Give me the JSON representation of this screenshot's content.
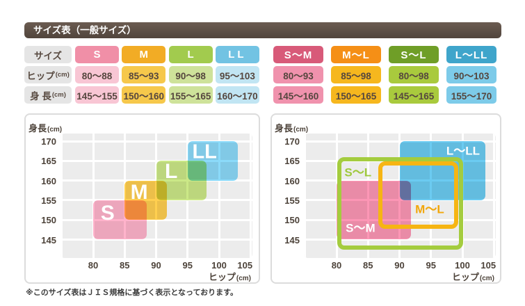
{
  "title": "サイズ表（一般サイズ）",
  "footnote": "※このサイズ表はＪＩＳ規格に基づく表示となっております。",
  "palette": {
    "title_bar_top": "#6B5C51",
    "title_bar_bottom": "#51453C",
    "title_text": "#FFFFFF",
    "label_cell_bg": "#E5E5E5",
    "label_cell_text": "#584A41",
    "data_cell_text": "#55463E",
    "panel_border": "#DCDCDC",
    "panel_bg": "#FFFFFF",
    "plot_bg": "#ECECEC",
    "grid_line": "#FFFFFF",
    "tick_text": "#4C4239",
    "footnote_text": "#3A3A3A"
  },
  "size_tables": {
    "left": {
      "row_labels": [
        {
          "main": "サイズ",
          "unit": ""
        },
        {
          "main": "ヒップ",
          "unit": "(cm)"
        },
        {
          "main": "身 長",
          "unit": "(cm)"
        }
      ],
      "columns": [
        {
          "label": "S",
          "letter_spacing": 0,
          "header_bg": "#F08FA7",
          "data_bg": "#F8C6D4",
          "hip": "80〜88",
          "height": "145〜155"
        },
        {
          "label": "M",
          "letter_spacing": 0,
          "header_bg": "#F2AC25",
          "data_bg": "#F6C84B",
          "hip": "85〜93",
          "height": "150〜160"
        },
        {
          "label": "L",
          "letter_spacing": 0,
          "header_bg": "#A2CB4E",
          "data_bg": "#CEE29A",
          "hip": "90〜98",
          "height": "155〜165"
        },
        {
          "label": "LL",
          "letter_spacing": 4,
          "header_bg": "#72C3E3",
          "data_bg": "#C1E5F3",
          "hip": "95〜103",
          "height": "160〜170"
        }
      ]
    },
    "right": {
      "columns": [
        {
          "label": "S〜M",
          "letter_spacing": 1,
          "header_bg": "#D85A79",
          "data_bg": "#F092AD",
          "hip": "80〜93",
          "height": "145〜160"
        },
        {
          "label": "M〜L",
          "letter_spacing": 1,
          "header_bg": "#F58F16",
          "data_bg": "#F6B71E",
          "hip": "85〜98",
          "height": "150〜165"
        },
        {
          "label": "S〜L",
          "letter_spacing": 1,
          "header_bg": "#6F9E27",
          "data_bg": "#A9CA3D",
          "hip": "80〜98",
          "height": "145〜165"
        },
        {
          "label": "L〜LL",
          "letter_spacing": 1,
          "header_bg": "#3FA5CB",
          "data_bg": "#7DCBE9",
          "hip": "90〜103",
          "height": "155〜170"
        }
      ]
    }
  },
  "chart_data": [
    {
      "type": "area",
      "title": "一般サイズ（S/M/L/LL）適合範囲",
      "ylabel_main": "身長",
      "ylabel_unit": "(cm)",
      "xlabel_main": "ヒップ",
      "xlabel_unit": "(cm)",
      "x_ticks": [
        80,
        85,
        90,
        95,
        100,
        105
      ],
      "y_ticks": [
        145,
        150,
        155,
        160,
        165,
        170
      ],
      "x_gridlines": [
        75,
        80,
        85,
        90,
        95,
        100,
        105
      ],
      "y_gridlines": [
        145,
        150,
        155,
        160,
        165,
        170
      ],
      "x_range_cm": [
        80,
        105
      ],
      "y_range_cm": [
        145,
        170
      ],
      "grid": true,
      "regions": [
        {
          "name": "S",
          "style": "fill",
          "color": "#FFB3CB",
          "hip_cm": [
            80,
            88
          ],
          "height_cm": [
            145,
            155
          ],
          "draw_hip": [
            80,
            88.5
          ],
          "label": {
            "text": "S",
            "color": "#FFFFFF",
            "size": 30,
            "hip": 82.3,
            "height": 151.7
          }
        },
        {
          "name": "M",
          "style": "fill",
          "color": "#FFCF50",
          "hip_cm": [
            85,
            93
          ],
          "height_cm": [
            150,
            160
          ],
          "draw_hip": [
            85,
            91.7
          ],
          "label": {
            "text": "M",
            "color": "#FFFFFF",
            "size": 30,
            "hip": 87.3,
            "height": 156.9
          }
        },
        {
          "name": "L",
          "style": "fill",
          "color": "#CBE887",
          "hip_cm": [
            90,
            98
          ],
          "height_cm": [
            155,
            165
          ],
          "label": {
            "text": "L",
            "color": "#FFFFFF",
            "size": 30,
            "hip": 92.4,
            "height": 162.2
          }
        },
        {
          "name": "LL",
          "style": "fill",
          "color": "#8BDAF9",
          "hip_cm": [
            95,
            103
          ],
          "height_cm": [
            160,
            170
          ],
          "label": {
            "text": "LL",
            "color": "#FFFFFF",
            "size": 29,
            "hip": 97.7,
            "height": 167.1
          }
        }
      ]
    },
    {
      "type": "area",
      "title": "ゆったり・ワイドサイズ（S〜M/M〜L/S〜L/L〜LL）適合範囲",
      "ylabel_main": "身長",
      "ylabel_unit": "(cm)",
      "xlabel_main": "ヒップ",
      "xlabel_unit": "(cm)",
      "x_ticks": [
        80,
        85,
        90,
        95,
        100,
        105
      ],
      "y_ticks": [
        145,
        150,
        155,
        160,
        165,
        170
      ],
      "x_gridlines": [
        75,
        80,
        85,
        90,
        95,
        100,
        105
      ],
      "y_gridlines": [
        145,
        150,
        155,
        160,
        165,
        170
      ],
      "x_range_cm": [
        80,
        105
      ],
      "y_range_cm": [
        145,
        170
      ],
      "grid": true,
      "regions": [
        {
          "name": "S〜M",
          "style": "fill",
          "color": "#FC96B5",
          "hip_cm": [
            80,
            93
          ],
          "height_cm": [
            145,
            160
          ],
          "draw_hip": [
            80,
            91.8
          ],
          "label": {
            "text": "S〜M",
            "color": "#FFFFFF",
            "size": 17,
            "hip": 83.8,
            "height": 147.9
          }
        },
        {
          "name": "L〜LL",
          "style": "fill",
          "color": "#6BCBF1",
          "hip_cm": [
            90,
            103
          ],
          "height_cm": [
            155,
            170
          ],
          "draw_hip": [
            90,
            103.6
          ],
          "label": {
            "text": "L〜LL",
            "color": "#FFFFFF",
            "size": 17,
            "hip": 100.1,
            "height": 167.6
          }
        },
        {
          "name": "S〜L",
          "style": "stroke",
          "color": "#A4CC3E",
          "hip_cm": [
            80,
            98
          ],
          "height_cm": [
            145,
            165
          ],
          "draw_hip": [
            80.4,
            98.4
          ],
          "draw_height": [
            145,
            165.4
          ],
          "label": {
            "text": "S〜L",
            "color": "#9FC93C",
            "size": 17,
            "hip": 83.4,
            "height": 162.0
          }
        },
        {
          "name": "M〜L",
          "style": "stroke",
          "color": "#F6B513",
          "hip_cm": [
            85,
            98
          ],
          "height_cm": [
            150,
            165
          ],
          "draw_hip": [
            87,
            97.7
          ],
          "draw_height": [
            150.4,
            164.4
          ],
          "label": {
            "text": "M〜L",
            "color": "#F2A70B",
            "size": 17,
            "hip": 94.8,
            "height": 152.6
          }
        }
      ]
    }
  ]
}
